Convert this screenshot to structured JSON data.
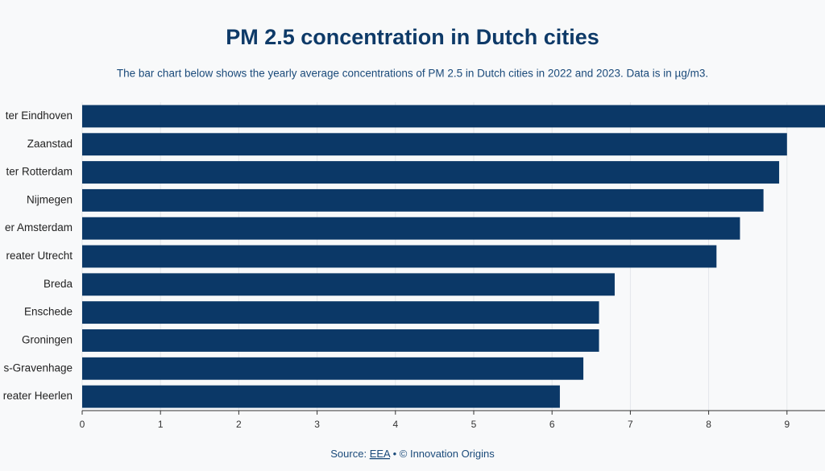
{
  "chart_data": {
    "type": "barh",
    "title": "PM 2.5 concentration in Dutch cities",
    "subtitle": "The bar chart below shows the yearly average concentrations of PM 2.5 in Dutch cities in 2022 and 2023. Data is in µg/m3.",
    "categories": [
      "ter Eindhoven",
      "Zaanstad",
      "ter Rotterdam",
      "Nijmegen",
      "er Amsterdam",
      "reater Utrecht",
      "Breda",
      "Enschede",
      "Groningen",
      "s-Gravenhage",
      "reater Heerlen"
    ],
    "values": [
      9.6,
      9.0,
      8.9,
      8.7,
      8.4,
      8.1,
      6.8,
      6.6,
      6.6,
      6.4,
      6.1
    ],
    "color": "#0b3867",
    "xlim": [
      0,
      9.5
    ],
    "xticks": [
      0,
      1,
      2,
      3,
      4,
      5,
      6,
      7,
      8,
      9
    ],
    "grid": true,
    "source_prefix": "Source:",
    "source_link": "EEA",
    "source_suffix": "• © Innovation Origins"
  }
}
